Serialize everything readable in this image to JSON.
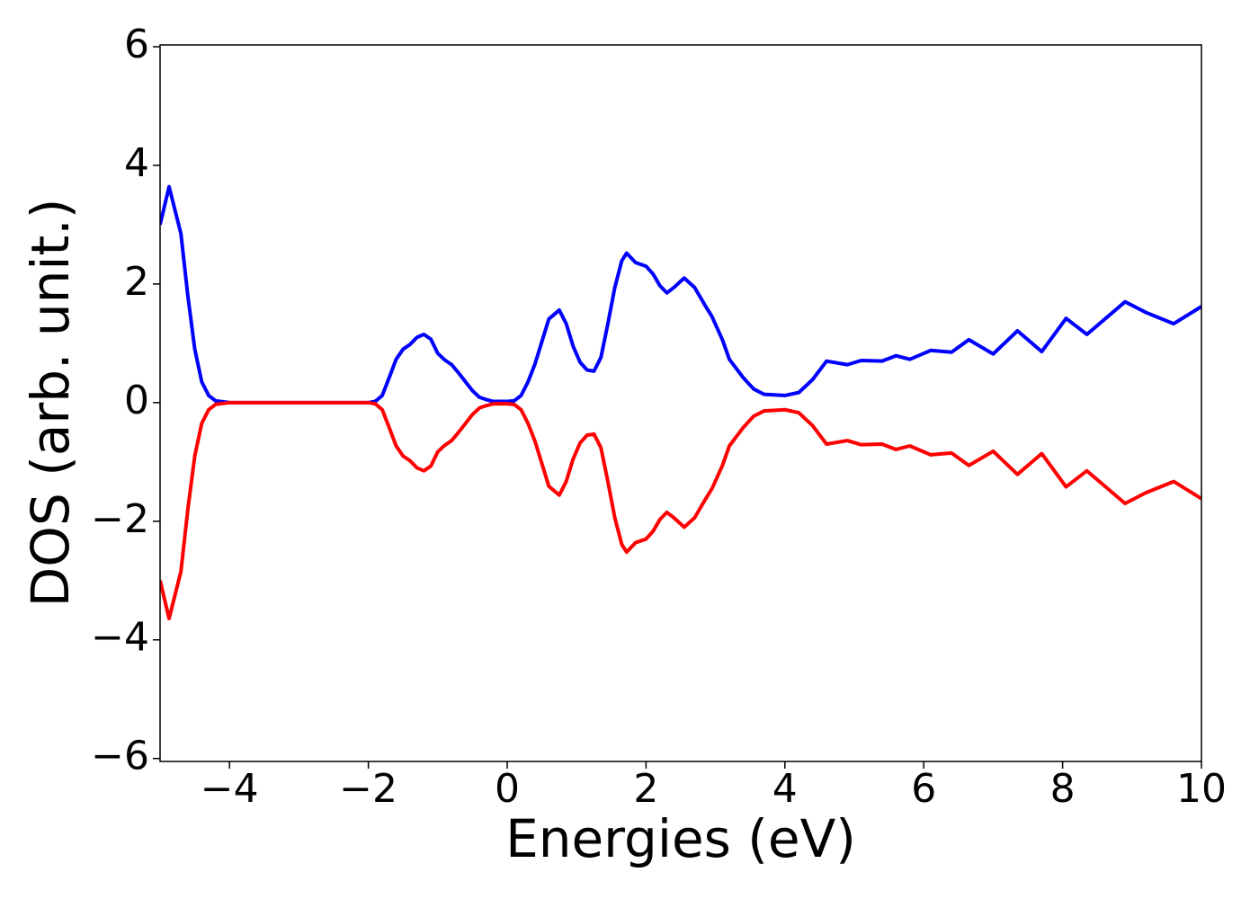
{
  "chart_data": {
    "type": "line",
    "xlabel": "Energies (eV)",
    "ylabel": "DOS (arb. unit.)",
    "x": [
      -5,
      -4.87,
      -4.7,
      -4.6,
      -4.5,
      -4.4,
      -4.3,
      -4.2,
      -4.0,
      -3.0,
      -2.0,
      -1.9,
      -1.8,
      -1.7,
      -1.6,
      -1.5,
      -1.4,
      -1.3,
      -1.2,
      -1.1,
      -1.0,
      -0.9,
      -0.8,
      -0.7,
      -0.6,
      -0.5,
      -0.4,
      -0.3,
      -0.2,
      -0.1,
      0,
      0.1,
      0.2,
      0.3,
      0.4,
      0.5,
      0.6,
      0.75,
      0.85,
      0.95,
      1.05,
      1.15,
      1.25,
      1.35,
      1.45,
      1.55,
      1.65,
      1.72,
      1.85,
      2.0,
      2.1,
      2.2,
      2.3,
      2.4,
      2.55,
      2.7,
      2.85,
      2.95,
      3.1,
      3.2,
      3.4,
      3.55,
      3.7,
      4.0,
      4.2,
      4.4,
      4.6,
      4.9,
      5.1,
      5.4,
      5.6,
      5.8,
      6.1,
      6.4,
      6.65,
      7.0,
      7.35,
      7.7,
      8.05,
      8.35,
      8.9,
      9.2,
      9.6,
      10
    ],
    "series": [
      {
        "color": "#0000ff",
        "values": [
          3.0,
          3.64,
          2.85,
          1.8,
          0.9,
          0.35,
          0.12,
          0.03,
          0,
          0,
          0,
          0.02,
          0.12,
          0.42,
          0.73,
          0.9,
          0.98,
          1.1,
          1.15,
          1.07,
          0.83,
          0.72,
          0.64,
          0.5,
          0.35,
          0.2,
          0.09,
          0.05,
          0.02,
          0.02,
          0.02,
          0.03,
          0.12,
          0.35,
          0.65,
          1.03,
          1.41,
          1.56,
          1.33,
          0.95,
          0.68,
          0.55,
          0.53,
          0.76,
          1.33,
          1.94,
          2.39,
          2.52,
          2.36,
          2.3,
          2.17,
          1.97,
          1.85,
          1.94,
          2.1,
          1.94,
          1.64,
          1.45,
          1.06,
          0.73,
          0.42,
          0.23,
          0.14,
          0.12,
          0.17,
          0.39,
          0.7,
          0.64,
          0.71,
          0.7,
          0.79,
          0.73,
          0.88,
          0.85,
          1.06,
          0.82,
          1.21,
          0.86,
          1.42,
          1.15,
          1.7,
          1.52,
          1.33,
          1.62
        ]
      },
      {
        "color": "#ff0000",
        "values": [
          -3.0,
          -3.64,
          -2.85,
          -1.8,
          -0.9,
          -0.35,
          -0.12,
          -0.03,
          0,
          0,
          0,
          -0.02,
          -0.12,
          -0.42,
          -0.73,
          -0.9,
          -0.98,
          -1.1,
          -1.15,
          -1.07,
          -0.83,
          -0.72,
          -0.64,
          -0.5,
          -0.35,
          -0.2,
          -0.09,
          -0.05,
          -0.02,
          -0.02,
          -0.02,
          -0.03,
          -0.12,
          -0.35,
          -0.65,
          -1.03,
          -1.41,
          -1.56,
          -1.33,
          -0.95,
          -0.68,
          -0.55,
          -0.53,
          -0.76,
          -1.33,
          -1.94,
          -2.39,
          -2.52,
          -2.36,
          -2.3,
          -2.17,
          -1.97,
          -1.85,
          -1.94,
          -2.1,
          -1.94,
          -1.64,
          -1.45,
          -1.06,
          -0.73,
          -0.42,
          -0.23,
          -0.14,
          -0.12,
          -0.17,
          -0.39,
          -0.7,
          -0.64,
          -0.71,
          -0.7,
          -0.79,
          -0.73,
          -0.88,
          -0.85,
          -1.06,
          -0.82,
          -1.21,
          -0.86,
          -1.42,
          -1.15,
          -1.7,
          -1.52,
          -1.33,
          -1.62
        ]
      }
    ],
    "xlim": [
      -5,
      10
    ],
    "xticks": [
      {
        "value": -4,
        "label": "−4"
      },
      {
        "value": -2,
        "label": "−2"
      },
      0,
      2,
      4,
      6,
      8,
      10
    ],
    "ylim": [
      -6.05,
      6.03
    ],
    "yticks": [
      {
        "value": -6,
        "label": "−6"
      },
      {
        "value": -4,
        "label": "−4"
      },
      {
        "value": -2,
        "label": "−2"
      },
      0,
      2,
      4,
      6
    ],
    "grid": false
  }
}
